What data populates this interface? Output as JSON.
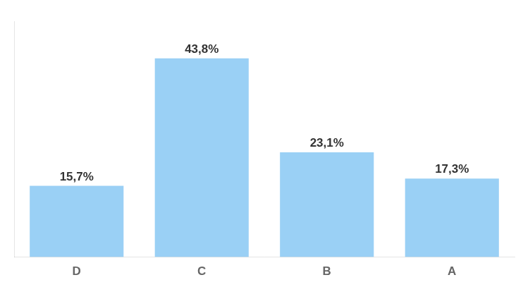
{
  "chart_data": {
    "type": "bar",
    "categories": [
      "D",
      "C",
      "B",
      "A"
    ],
    "values": [
      15.7,
      43.8,
      23.1,
      17.3
    ],
    "value_labels": [
      "15,7%",
      "43,8%",
      "23,1%",
      "17,3%"
    ],
    "data_labels": true,
    "ylim": [
      0,
      52
    ],
    "grid": false,
    "tick_labels": "x"
  }
}
